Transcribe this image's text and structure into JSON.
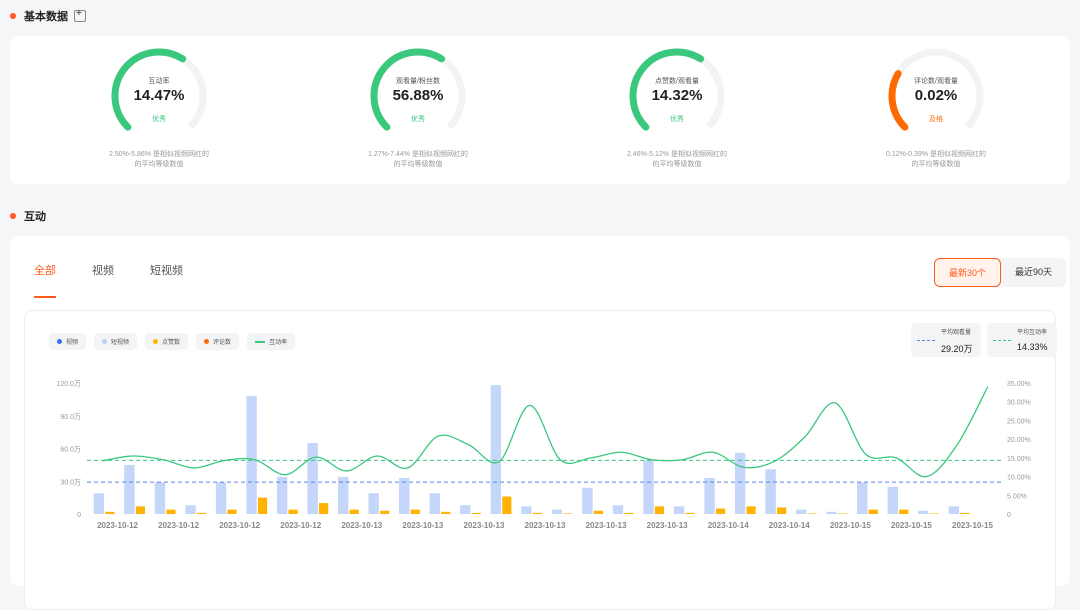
{
  "sections": {
    "basic": {
      "title": "基本数据",
      "copy_icon": "copy-add-icon"
    },
    "interaction": {
      "title": "互动"
    }
  },
  "metrics": [
    {
      "label": "互动率",
      "value": "14.47%",
      "grade": "优秀",
      "desc1": "2.50%-5.86% 是相似视频网红的",
      "desc2": "的平均等级数值",
      "fraction": 0.62,
      "color": "#3ac77e"
    },
    {
      "label": "观看量/粉丝数",
      "value": "56.88%",
      "grade": "优秀",
      "desc1": "1.27%-7.44% 是相似视频网红的",
      "desc2": "的平均等级数值",
      "fraction": 0.62,
      "color": "#3ac77e"
    },
    {
      "label": "点赞数/观看量",
      "value": "14.32%",
      "grade": "优秀",
      "desc1": "2.46%-5.12% 是相似视频网红的",
      "desc2": "的平均等级数值",
      "fraction": 0.62,
      "color": "#3ac77e"
    },
    {
      "label": "评论数/观看量",
      "value": "0.02%",
      "grade": "及格",
      "desc1": "0.12%-0.39% 是相似视频网红的",
      "desc2": "的平均等级数值",
      "fraction": 0.28,
      "color": "#ff6a00"
    }
  ],
  "tabs": [
    {
      "label": "全部",
      "active": true
    },
    {
      "label": "视频",
      "active": false
    },
    {
      "label": "短视频",
      "active": false
    }
  ],
  "range": {
    "recent": "最新30个",
    "days90": "最近90天"
  },
  "legend": [
    {
      "label": "视频",
      "color": "#3b6cf6",
      "kind": "dot"
    },
    {
      "label": "短视频",
      "color": "#b9d0f8",
      "kind": "dot"
    },
    {
      "label": "点赞数",
      "color": "#ffb300",
      "kind": "dot"
    },
    {
      "label": "评论数",
      "color": "#ff6a00",
      "kind": "dot"
    },
    {
      "label": "互动率",
      "color": "#3ac77e",
      "kind": "line"
    }
  ],
  "averages": {
    "views": {
      "label": "平均观看量",
      "value": "29.20万",
      "color": "#5b86e5"
    },
    "rate": {
      "label": "平均互动率",
      "value": "14.33%",
      "color": "#3ac77e"
    }
  },
  "chart_data": {
    "type": "bar",
    "yleft_ticks": [
      "120.0万",
      "90.0万",
      "60.0万",
      "30.0万",
      "0"
    ],
    "yright_ticks": [
      "35.00%",
      "30.00%",
      "25.00%",
      "20.00%",
      "15.00%",
      "10.00%",
      "5.00%",
      "0"
    ],
    "yleft_range": [
      0,
      120
    ],
    "yright_range": [
      0,
      35
    ],
    "x_tick_labels": [
      "2023-10-12",
      "2023-10-12",
      "2023-10-12",
      "2023-10-12",
      "2023-10-13",
      "2023-10-13",
      "2023-10-13",
      "2023-10-13",
      "2023-10-13",
      "2023-10-13",
      "2023-10-14",
      "2023-10-14",
      "2023-10-15",
      "2023-10-15",
      "2023-10-15"
    ],
    "series": [
      {
        "name": "短视频",
        "unit": "万",
        "values": [
          19,
          45,
          29,
          8,
          29,
          108,
          34,
          65,
          34,
          19,
          33,
          19,
          8,
          118,
          7,
          4,
          24,
          8,
          49,
          7,
          33,
          56,
          41,
          4,
          2,
          29,
          25,
          3,
          7,
          0
        ]
      },
      {
        "name": "点赞数",
        "unit": "万",
        "values": [
          2,
          7,
          4,
          1,
          4,
          15,
          4,
          10,
          4,
          3,
          4,
          2,
          1,
          16,
          1,
          0.5,
          3,
          1,
          7,
          1,
          5,
          7,
          6,
          0.5,
          0.5,
          4,
          4,
          0.5,
          1,
          0
        ]
      },
      {
        "name": "互动率",
        "unit": "%",
        "values": [
          14.2,
          15.5,
          14.5,
          12.3,
          14.3,
          14.5,
          10.5,
          15.2,
          11.5,
          15.5,
          12.3,
          20.8,
          18.5,
          14.0,
          29.0,
          14.5,
          15.0,
          16.5,
          14.5,
          14.5,
          16.5,
          12.5,
          14.0,
          20.5,
          29.7,
          16.0,
          15.0,
          10.0,
          18.5,
          34.0
        ]
      }
    ],
    "avg_views": 29.2,
    "avg_rate": 14.33
  }
}
